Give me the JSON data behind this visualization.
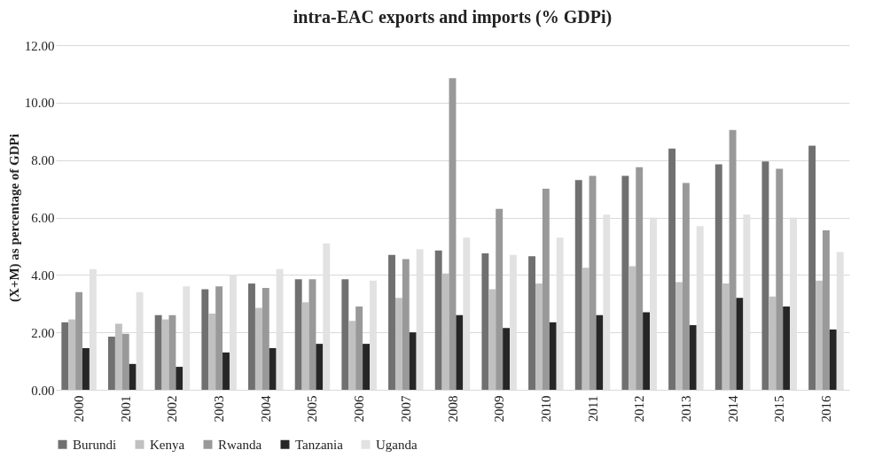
{
  "chart_data": {
    "type": "bar",
    "title": "intra-EAC exports and imports (% GDPi)",
    "ylabel": "(X+M) as percentage of GDPi",
    "categories": [
      "2000",
      "2001",
      "2002",
      "2003",
      "2004",
      "2005",
      "2006",
      "2007",
      "2008",
      "2009",
      "2010",
      "2011",
      "2012",
      "2013",
      "2014",
      "2015",
      "2016"
    ],
    "series": [
      {
        "name": "Burundi",
        "color": "#707070",
        "values": [
          2.35,
          1.85,
          2.6,
          3.5,
          3.7,
          3.85,
          3.85,
          4.7,
          4.85,
          4.75,
          4.65,
          7.3,
          7.45,
          8.4,
          7.85,
          7.95,
          8.5
        ]
      },
      {
        "name": "Kenya",
        "color": "#c0c0c0",
        "values": [
          2.45,
          2.3,
          2.45,
          2.65,
          2.85,
          3.05,
          2.4,
          3.2,
          4.05,
          3.5,
          3.7,
          4.25,
          4.3,
          3.75,
          3.7,
          3.25,
          3.8
        ]
      },
      {
        "name": "Rwanda",
        "color": "#999999",
        "values": [
          3.4,
          1.95,
          2.6,
          3.6,
          3.55,
          3.85,
          2.9,
          4.55,
          10.85,
          6.3,
          7.0,
          7.45,
          7.75,
          7.2,
          9.05,
          7.7,
          5.55
        ]
      },
      {
        "name": "Tanzania",
        "color": "#262626",
        "values": [
          1.45,
          0.9,
          0.8,
          1.3,
          1.45,
          1.6,
          1.6,
          2.0,
          2.6,
          2.15,
          2.35,
          2.6,
          2.7,
          2.25,
          3.2,
          2.9,
          2.1
        ]
      },
      {
        "name": "Uganda",
        "color": "#e2e2e2",
        "values": [
          4.2,
          3.4,
          3.6,
          4.0,
          4.2,
          5.1,
          3.8,
          4.9,
          5.3,
          4.7,
          5.3,
          6.1,
          6.0,
          5.7,
          6.1,
          6.0,
          4.8
        ]
      }
    ],
    "ylim": [
      0,
      12
    ],
    "yticks": [
      {
        "value": 0,
        "label": "0.00"
      },
      {
        "value": 2,
        "label": "2.00"
      },
      {
        "value": 4,
        "label": "4.00"
      },
      {
        "value": 6,
        "label": "6.00"
      },
      {
        "value": 8,
        "label": "8.00"
      },
      {
        "value": 10,
        "label": "10.00"
      },
      {
        "value": 12,
        "label": "12.00"
      }
    ],
    "grid": "y",
    "legend": "bottom"
  }
}
